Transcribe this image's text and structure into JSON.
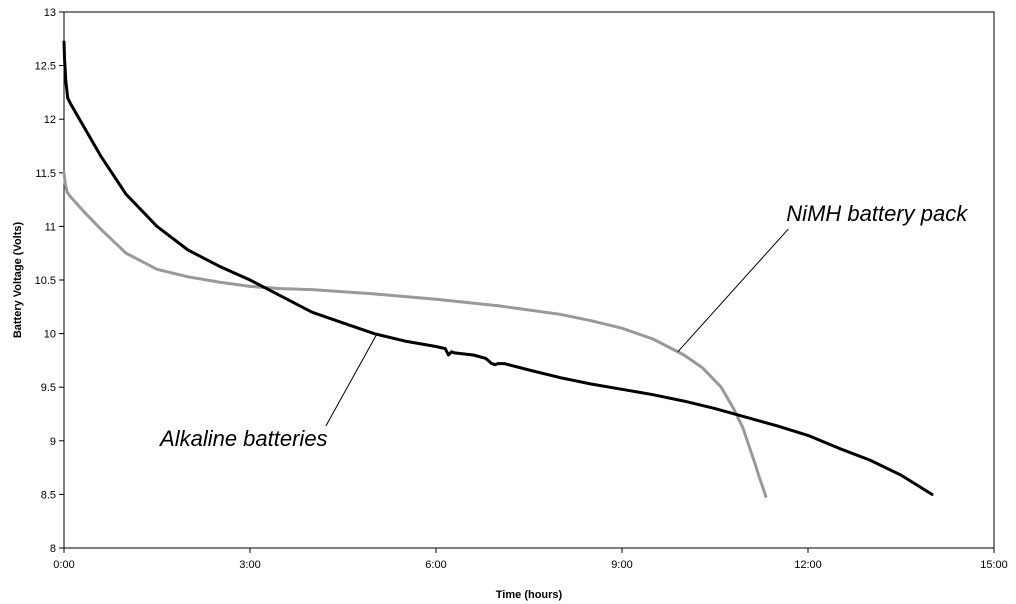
{
  "chart_data": {
    "type": "line",
    "title": "",
    "xlabel": "Time (hours)",
    "ylabel": "Battery Voltage (Volts)",
    "xlim": [
      0,
      15
    ],
    "ylim": [
      8,
      13
    ],
    "x_ticks": [
      {
        "value": 0,
        "label": "0:00"
      },
      {
        "value": 3,
        "label": "3:00"
      },
      {
        "value": 6,
        "label": "6:00"
      },
      {
        "value": 9,
        "label": "9:00"
      },
      {
        "value": 12,
        "label": "12:00"
      },
      {
        "value": 15,
        "label": "15:00"
      }
    ],
    "y_ticks": [
      {
        "value": 8,
        "label": "8"
      },
      {
        "value": 8.5,
        "label": "8.5"
      },
      {
        "value": 9,
        "label": "9"
      },
      {
        "value": 9.5,
        "label": "9.5"
      },
      {
        "value": 10,
        "label": "10"
      },
      {
        "value": 10.5,
        "label": "10.5"
      },
      {
        "value": 11,
        "label": "11"
      },
      {
        "value": 11.5,
        "label": "11.5"
      },
      {
        "value": 12,
        "label": "12"
      },
      {
        "value": 12.5,
        "label": "12.5"
      },
      {
        "value": 13,
        "label": "13"
      }
    ],
    "grid": false,
    "legend": "none",
    "series": [
      {
        "name": "Alkaline batteries",
        "color": "#000000",
        "x": [
          0,
          0.01,
          0.03,
          0.06,
          0.1,
          0.3,
          0.6,
          1.0,
          1.5,
          2.0,
          2.5,
          3.0,
          3.5,
          4.0,
          4.5,
          5.0,
          5.5,
          6.0,
          6.15,
          6.2,
          6.25,
          6.3,
          6.6,
          6.8,
          6.9,
          6.95,
          7.0,
          7.1,
          7.5,
          8.0,
          8.5,
          9.0,
          9.5,
          10.0,
          10.5,
          11.0,
          11.5,
          12.0,
          12.5,
          13.0,
          13.5,
          14.0
        ],
        "values": [
          12.72,
          12.55,
          12.35,
          12.2,
          12.15,
          11.95,
          11.65,
          11.3,
          11.0,
          10.78,
          10.63,
          10.5,
          10.35,
          10.2,
          10.1,
          10.0,
          9.93,
          9.88,
          9.86,
          9.8,
          9.83,
          9.82,
          9.8,
          9.77,
          9.72,
          9.71,
          9.72,
          9.72,
          9.66,
          9.59,
          9.53,
          9.48,
          9.43,
          9.37,
          9.3,
          9.22,
          9.14,
          9.05,
          8.93,
          8.82,
          8.68,
          8.5
        ]
      },
      {
        "name": "NiMH battery pack",
        "color": "#999999",
        "x": [
          0,
          0.02,
          0.05,
          0.1,
          0.3,
          0.6,
          1.0,
          1.5,
          2.0,
          2.5,
          3.0,
          3.5,
          4.0,
          5.0,
          6.0,
          7.0,
          8.0,
          8.5,
          9.0,
          9.5,
          10.0,
          10.3,
          10.6,
          10.8,
          10.95,
          11.05,
          11.15,
          11.22,
          11.28,
          11.32
        ],
        "values": [
          11.5,
          11.4,
          11.32,
          11.28,
          11.15,
          10.97,
          10.75,
          10.6,
          10.53,
          10.48,
          10.44,
          10.42,
          10.41,
          10.37,
          10.32,
          10.26,
          10.18,
          10.12,
          10.05,
          9.95,
          9.8,
          9.68,
          9.5,
          9.3,
          9.12,
          8.95,
          8.78,
          8.65,
          8.55,
          8.48
        ]
      }
    ],
    "annotations": [
      {
        "text": "Alkaline batteries",
        "series": "Alkaline batteries",
        "text_at": [
          2.9,
          8.95
        ],
        "points_to": [
          5.05,
          10.0
        ]
      },
      {
        "text": "NiMH battery pack",
        "series": "NiMH battery pack",
        "text_at": [
          11.65,
          11.05
        ],
        "points_to": [
          9.9,
          9.83
        ]
      }
    ]
  }
}
